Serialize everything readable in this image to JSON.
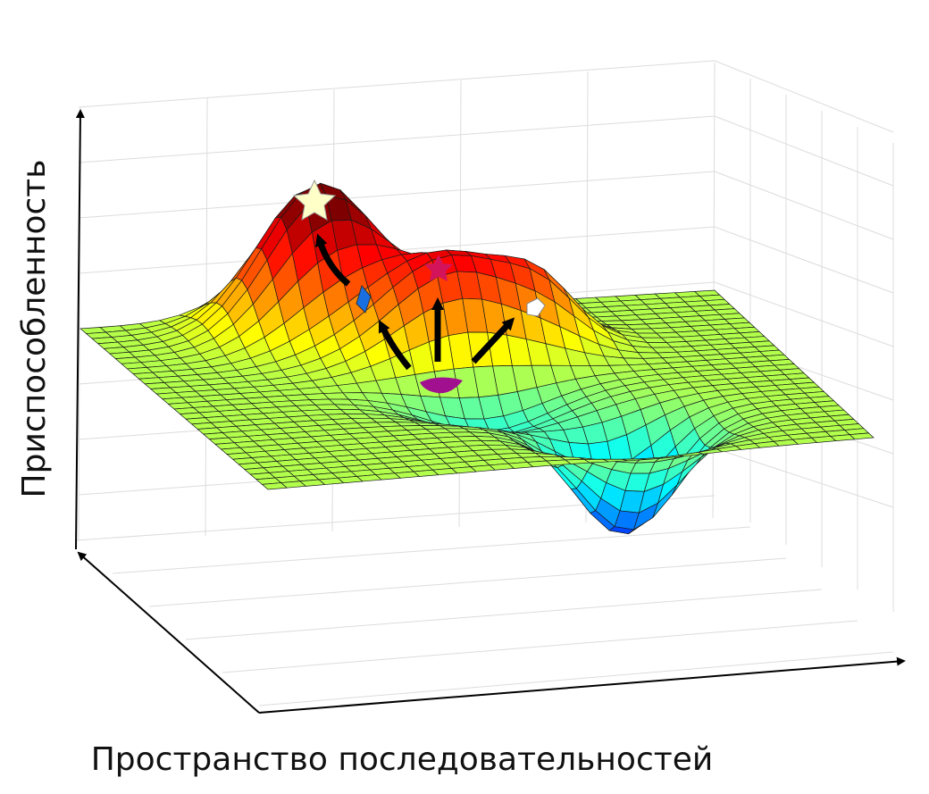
{
  "axes": {
    "y_label": "Приспособленность",
    "x_label": "Пространство последовательностей"
  }
}
